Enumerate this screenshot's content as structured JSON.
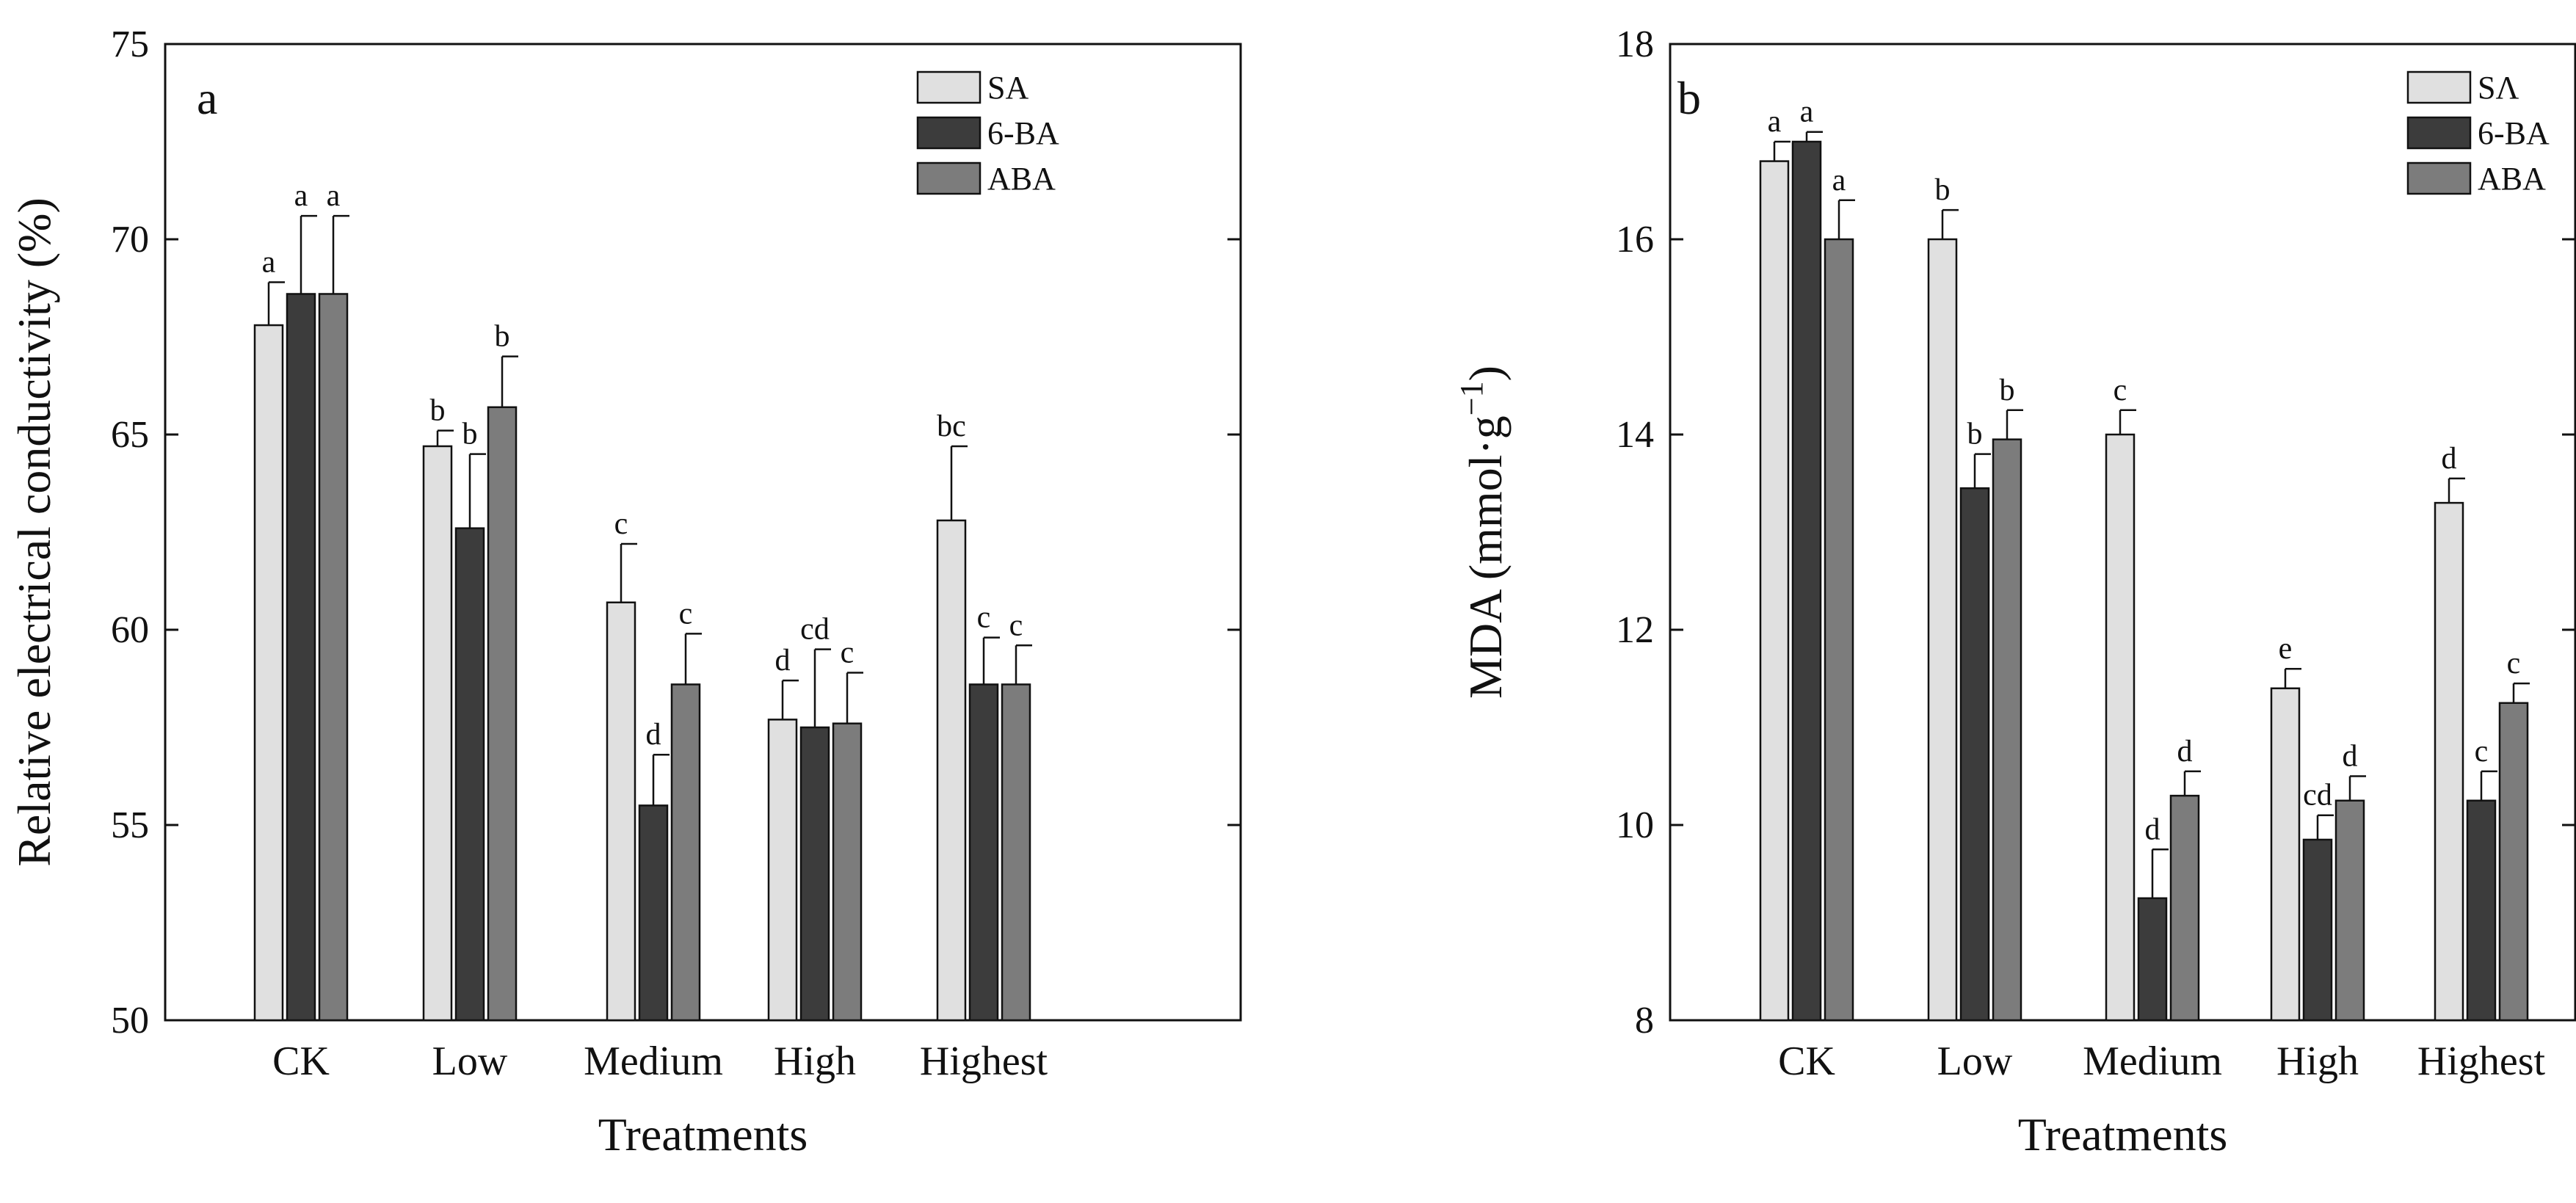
{
  "figure": {
    "colors": {
      "SA": "#e0e0e0",
      "6-BA": "#3c3c3c",
      "ABA": "#7c7c7c",
      "axis": "#111111",
      "background": "#ffffff"
    }
  },
  "chart_data": [
    {
      "type": "bar",
      "panel": "a",
      "title": "",
      "xlabel": "Treatments",
      "ylabel": "Relative electrical conductivity (%)",
      "ylim": [
        50,
        75
      ],
      "yticks": [
        50,
        55,
        60,
        65,
        70,
        75
      ],
      "grid": false,
      "legend": "top-right",
      "categories": [
        "CK",
        "Low",
        "Medium",
        "High",
        "Highest"
      ],
      "series": [
        {
          "name": "SA",
          "color": "#e0e0e0",
          "values": [
            67.8,
            64.7,
            60.7,
            57.7,
            62.8
          ],
          "errors": [
            1.1,
            0.4,
            1.5,
            1.0,
            1.9
          ],
          "letters": [
            "a",
            "b",
            "c",
            "d",
            "bc"
          ]
        },
        {
          "name": "6-BA",
          "color": "#3c3c3c",
          "values": [
            68.6,
            62.6,
            55.5,
            57.5,
            58.6
          ],
          "errors": [
            2.0,
            1.9,
            1.3,
            2.0,
            1.2
          ],
          "letters": [
            "a",
            "b",
            "d",
            "cd",
            "c"
          ]
        },
        {
          "name": "ABA",
          "color": "#7c7c7c",
          "values": [
            68.6,
            65.7,
            58.6,
            57.6,
            58.6
          ],
          "errors": [
            2.0,
            1.3,
            1.3,
            1.3,
            1.0
          ],
          "letters": [
            "a",
            "b",
            "c",
            "c",
            "c"
          ]
        }
      ]
    },
    {
      "type": "bar",
      "panel": "b",
      "title": "",
      "xlabel": "Treatments",
      "ylabel": "MDA (mmol·g",
      "ylabel_sup": "−1",
      "ylabel_suffix": ")",
      "ylim": [
        8,
        18
      ],
      "yticks": [
        8,
        10,
        12,
        14,
        16,
        18
      ],
      "grid": false,
      "legend": "top-right",
      "categories": [
        "CK",
        "Low",
        "Medium",
        "High",
        "Highest"
      ],
      "series": [
        {
          "name": "SΛ",
          "color": "#e0e0e0",
          "values": [
            16.8,
            16.0,
            14.0,
            11.4,
            13.3
          ],
          "errors": [
            0.2,
            0.3,
            0.25,
            0.2,
            0.25
          ],
          "letters": [
            "a",
            "b",
            "c",
            "e",
            "d"
          ]
        },
        {
          "name": "6-BA",
          "color": "#3c3c3c",
          "values": [
            17.0,
            13.45,
            9.25,
            9.85,
            10.25
          ],
          "errors": [
            0.1,
            0.35,
            0.5,
            0.25,
            0.3
          ],
          "letters": [
            "a",
            "b",
            "d",
            "cd",
            "c"
          ]
        },
        {
          "name": "ABA",
          "color": "#7c7c7c",
          "values": [
            16.0,
            13.95,
            10.3,
            10.25,
            11.25
          ],
          "errors": [
            0.4,
            0.3,
            0.25,
            0.25,
            0.2
          ],
          "letters": [
            "a",
            "b",
            "d",
            "d",
            "c"
          ]
        }
      ]
    }
  ]
}
